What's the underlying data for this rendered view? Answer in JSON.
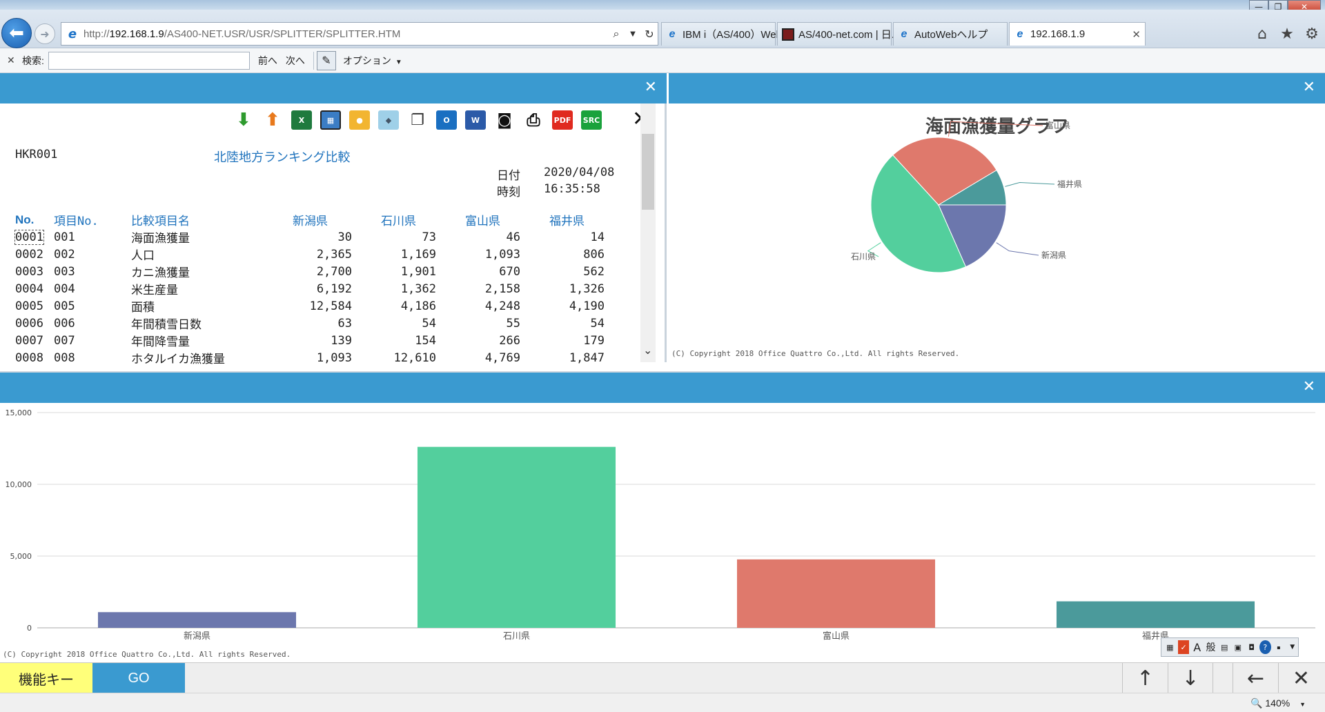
{
  "browser": {
    "url_prefix": "http://",
    "url_host": "192.168.1.9",
    "url_path": "/AS400-NET.USR/USR/SPLITTER/SPLITTER.HTM",
    "tabs": [
      {
        "label": "IBM i（AS/400）Web...",
        "icon": "ie-icon",
        "active": false
      },
      {
        "label": "AS/400-net.com | 日...",
        "icon": "page-icon",
        "active": false
      },
      {
        "label": "AutoWebヘルプ",
        "icon": "ie-icon",
        "active": false
      },
      {
        "label": "192.168.1.9",
        "icon": "ie-icon",
        "active": true
      }
    ]
  },
  "findbar": {
    "label": "検索:",
    "value": "",
    "prev": "前へ",
    "next": "次へ",
    "options": "オプション"
  },
  "report": {
    "id": "HKR001",
    "title": "北陸地方ランキング比較",
    "date_label": "日付",
    "date_value": "2020/04/08",
    "time_label": "時刻",
    "time_value": "16:35:58",
    "columns": [
      "No.",
      "項目No.",
      "比較項目名",
      "新潟県",
      "石川県",
      "富山県",
      "福井県"
    ],
    "rows": [
      [
        "0001",
        "001",
        "海面漁獲量",
        "30",
        "73",
        "46",
        "14"
      ],
      [
        "0002",
        "002",
        "人口",
        "2,365",
        "1,169",
        "1,093",
        "806"
      ],
      [
        "0003",
        "003",
        "カニ漁獲量",
        "2,700",
        "1,901",
        "670",
        "562"
      ],
      [
        "0004",
        "004",
        "米生産量",
        "6,192",
        "1,362",
        "2,158",
        "1,326"
      ],
      [
        "0005",
        "005",
        "面積",
        "12,584",
        "4,186",
        "4,248",
        "4,190"
      ],
      [
        "0006",
        "006",
        "年間積雪日数",
        "63",
        "54",
        "55",
        "54"
      ],
      [
        "0007",
        "007",
        "年間降雪量",
        "139",
        "154",
        "266",
        "179"
      ],
      [
        "0008",
        "008",
        "ホタルイカ漁獲量",
        "1,093",
        "12,610",
        "4,769",
        "1,847"
      ]
    ]
  },
  "copyright": "(C) Copyright 2018 Office Quattro Co.,Ltd. All rights Reserved.",
  "chart_data": [
    {
      "type": "pie",
      "title": "海面漁獲量グラフ",
      "categories": [
        "新潟県",
        "石川県",
        "富山県",
        "福井県"
      ],
      "values": [
        30,
        73,
        46,
        14
      ],
      "colors": [
        "#6c77ad",
        "#53cf9d",
        "#df796c",
        "#4b9a9b"
      ]
    },
    {
      "type": "bar",
      "categories": [
        "新潟県",
        "石川県",
        "富山県",
        "福井県"
      ],
      "values": [
        1093,
        12610,
        4769,
        1847
      ],
      "colors": [
        "#6c77ad",
        "#53cf9d",
        "#df796c",
        "#4b9a9b"
      ],
      "ylim": [
        0,
        15000
      ],
      "yticks": [
        "0",
        "5,000",
        "10,000",
        "15,000"
      ],
      "grid": true
    }
  ],
  "funcbar": {
    "fkey": "機能キー",
    "go": "GO"
  },
  "status": {
    "zoom": "140%"
  }
}
